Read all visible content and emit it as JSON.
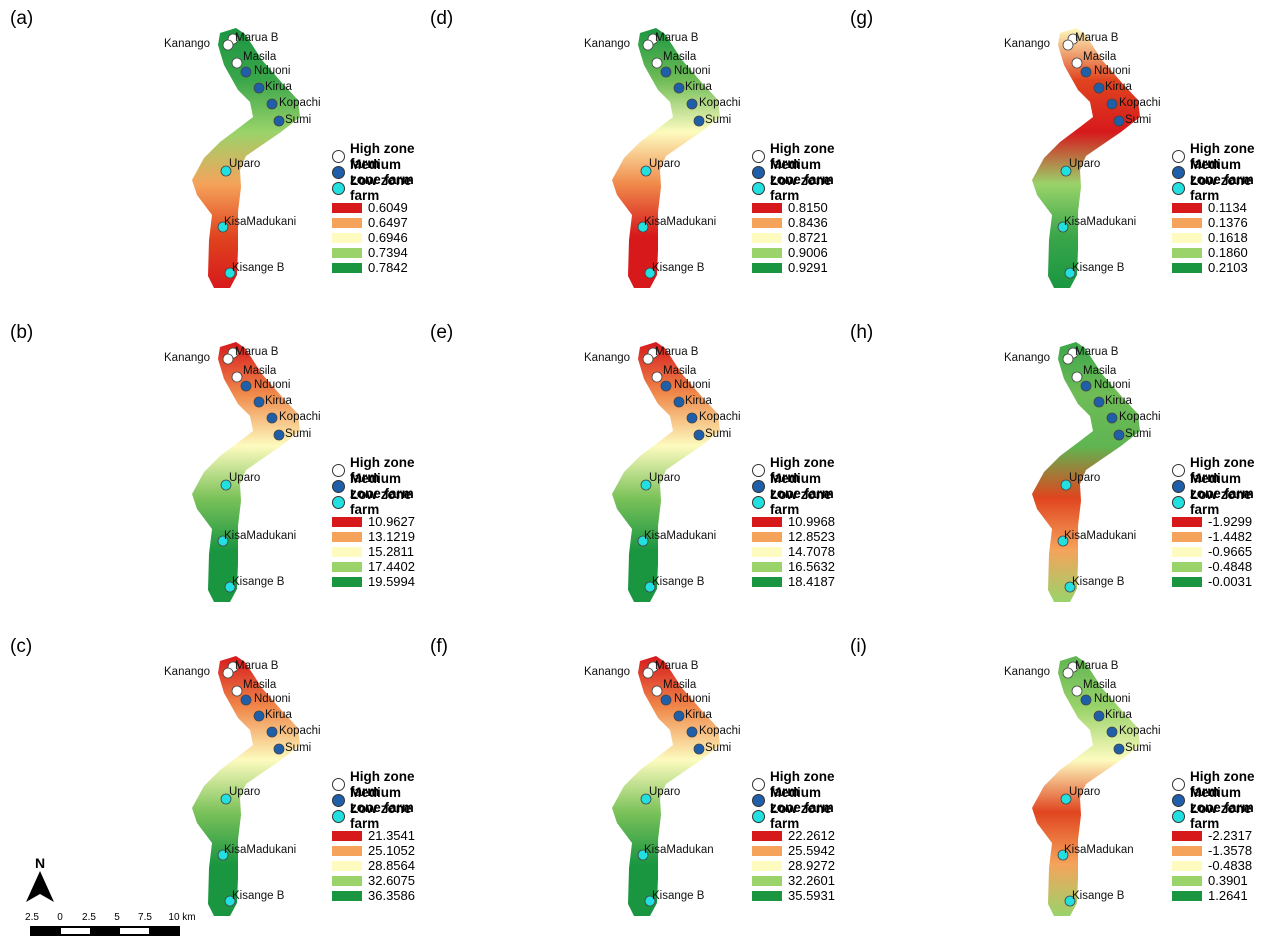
{
  "zone_legend": [
    {
      "label": "High zone farm",
      "color": "#ffffff"
    },
    {
      "label": "Medium zone farm",
      "color": "#1f5ea8"
    },
    {
      "label": "Low zone farm",
      "color": "#22e0e0"
    }
  ],
  "class_colors": [
    "#d7191c",
    "#f5a35b",
    "#fdfbbf",
    "#9ad36a",
    "#1a9641"
  ],
  "farms": [
    {
      "name": "Marua B",
      "zone": "high"
    },
    {
      "name": "Kanango",
      "zone": "high"
    },
    {
      "name": "Masila",
      "zone": "high"
    },
    {
      "name": "Nduoni",
      "zone": "medium"
    },
    {
      "name": "Kirua",
      "zone": "medium"
    },
    {
      "name": "Kopachi",
      "zone": "medium"
    },
    {
      "name": "Sumi",
      "zone": "medium"
    },
    {
      "name": "Uparo",
      "zone": "low"
    },
    {
      "name": "KisaMadukani",
      "zone": "low"
    },
    {
      "name": "Kisange B",
      "zone": "low"
    }
  ],
  "panels": [
    {
      "letter": "(a)",
      "classes": [
        "0.6049",
        "0.6497",
        "0.6946",
        "0.7394",
        "0.7842"
      ],
      "farm_names": [
        "Marua B",
        "Kanango",
        "Masila",
        "Nduoni",
        "Kirua",
        "Kopachi",
        "Sumi",
        "Uparo",
        "KisaMadukani",
        "Kisange B"
      ]
    },
    {
      "letter": "(b)",
      "classes": [
        "10.9627",
        "13.1219",
        "15.2811",
        "17.4402",
        "19.5994"
      ],
      "farm_names": [
        "Marua B",
        "Kanango",
        "Masila",
        "Nduoni",
        "Kirua",
        "Kopachi",
        "Sumi",
        "Uparo",
        "KisaMadukani",
        "Kisange B"
      ]
    },
    {
      "letter": "(c)",
      "classes": [
        "21.3541",
        "25.1052",
        "28.8564",
        "32.6075",
        "36.3586"
      ],
      "farm_names": [
        "Marua B",
        "Kanango",
        "Masila",
        "Nduoni",
        "Kirua",
        "Kopachi",
        "Sumi",
        "Uparo",
        "KisaMadukani",
        "Kisange B"
      ]
    },
    {
      "letter": "(d)",
      "classes": [
        "0.8150",
        "0.8436",
        "0.8721",
        "0.9006",
        "0.9291"
      ],
      "farm_names": [
        "Marua B",
        "Kanango",
        "Masila",
        "Nduoni",
        "Kirua",
        "Kopachi",
        "Sumi",
        "Uparo",
        "KisaMadukani",
        "Kisange B"
      ]
    },
    {
      "letter": "(e)",
      "classes": [
        "10.9968",
        "12.8523",
        "14.7078",
        "16.5632",
        "18.4187"
      ],
      "farm_names": [
        "Marua B",
        "Kanango",
        "Masila",
        "Nduoni",
        "Kirua",
        "Kopachi",
        "Sumi",
        "Uparo",
        "KisaMadukani",
        "Kisange B"
      ]
    },
    {
      "letter": "(f)",
      "classes": [
        "22.2612",
        "25.5942",
        "28.9272",
        "32.2601",
        "35.5931"
      ],
      "farm_names": [
        "Marua B",
        "Kanango",
        "Masila",
        "Nduoni",
        "Kirua",
        "Kopachi",
        "Sumi",
        "Uparo",
        "KisaMadukan",
        "Kisange B"
      ]
    },
    {
      "letter": "(g)",
      "classes": [
        "0.1134",
        "0.1376",
        "0.1618",
        "0.1860",
        "0.2103"
      ],
      "farm_names": [
        "Marua B",
        "Kanango",
        "Masila",
        "Nduoni",
        "Kirua",
        "Kopachi",
        "Sumi",
        "Uparo",
        "KisaMadukani",
        "Kisange B"
      ]
    },
    {
      "letter": "(h)",
      "classes": [
        "-1.9299",
        "-1.4482",
        "-0.9665",
        "-0.4848",
        "-0.0031"
      ],
      "farm_names": [
        "Marua B",
        "Kanango",
        "Masila",
        "Nduoni",
        "Kirua",
        "Kopachi",
        "Sumi",
        "Uparo",
        "KisaMadukani",
        "Kisange B"
      ]
    },
    {
      "letter": "(i)",
      "classes": [
        "-2.2317",
        "-1.3578",
        "-0.4838",
        "0.3901",
        "1.2641"
      ],
      "farm_names": [
        "Marua B",
        "Kanango",
        "Masila",
        "Nduoni",
        "Kirua",
        "Kopachi",
        "Sumi",
        "Uparo",
        "KisaMadukan",
        "Kisange B"
      ]
    }
  ],
  "panel_fills": {
    "a": [
      "#1a9641",
      "#3aa64a",
      "#9ad36a",
      "#f5a35b",
      "#e0451f",
      "#d7191c"
    ],
    "b": [
      "#d7191c",
      "#f08a4b",
      "#fdfbbf",
      "#7cc25a",
      "#1a9641",
      "#1a9641"
    ],
    "c": [
      "#d7191c",
      "#f08a4b",
      "#fdfbbf",
      "#7cc25a",
      "#1a9641",
      "#1a9641"
    ],
    "d": [
      "#1a9641",
      "#6fbc56",
      "#fdfbbf",
      "#f08a4b",
      "#d7191c",
      "#d7191c"
    ],
    "e": [
      "#d7191c",
      "#f08a4b",
      "#fdfbbf",
      "#7cc25a",
      "#1a9641",
      "#1a9641"
    ],
    "f": [
      "#d7191c",
      "#f08a4b",
      "#fdfbbf",
      "#7cc25a",
      "#1a9641",
      "#1a9641"
    ],
    "g": [
      "#fdfbbf",
      "#e0451f",
      "#d7191c",
      "#9ad36a",
      "#3aa64a",
      "#1a9641"
    ],
    "h": [
      "#3aa64a",
      "#6fbc56",
      "#5fb552",
      "#e0451f",
      "#f5a35b",
      "#9ad36a"
    ],
    "i": [
      "#5fb552",
      "#9ad36a",
      "#fdfbbf",
      "#e0451f",
      "#f5a35b",
      "#9ad36a"
    ]
  },
  "north_arrow_label": "N",
  "scale_labels": [
    "2.5",
    "0",
    "2.5",
    "5",
    "7.5",
    "10 km"
  ]
}
